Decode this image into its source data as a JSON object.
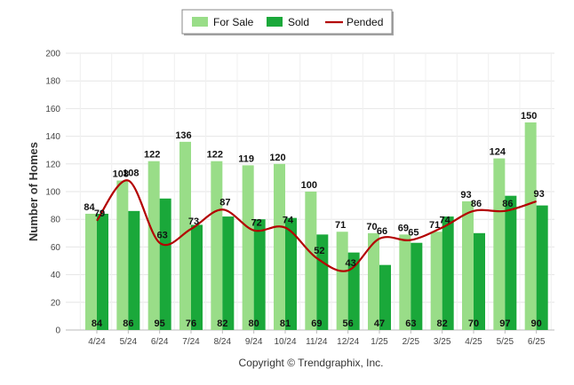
{
  "chart_data": {
    "type": "bar",
    "categories": [
      "4/24",
      "5/24",
      "6/24",
      "7/24",
      "8/24",
      "9/24",
      "10/24",
      "11/24",
      "12/24",
      "1/25",
      "2/25",
      "3/25",
      "4/25",
      "5/25",
      "6/25"
    ],
    "series": [
      {
        "name": "For Sale",
        "type": "bar",
        "color": "#99dd88",
        "values": [
          84,
          108,
          122,
          136,
          122,
          119,
          120,
          100,
          71,
          70,
          69,
          71,
          93,
          124,
          150
        ]
      },
      {
        "name": "Sold",
        "type": "bar",
        "color": "#1aa83a",
        "values": [
          84,
          86,
          95,
          76,
          82,
          80,
          81,
          69,
          56,
          47,
          63,
          82,
          70,
          97,
          90
        ]
      },
      {
        "name": "Pended",
        "type": "line",
        "color": "#b30000",
        "values": [
          79,
          108,
          63,
          73,
          87,
          72,
          74,
          52,
          43,
          66,
          65,
          74,
          86,
          86,
          93
        ]
      }
    ],
    "title": "",
    "xlabel": "",
    "ylabel": "Number of Homes",
    "ylim": [
      0,
      200
    ],
    "yticks": [
      0,
      20,
      40,
      60,
      80,
      100,
      120,
      140,
      160,
      180,
      200
    ],
    "grid": true,
    "legend_position": "top-center",
    "copyright": "Copyright © Trendgraphix, Inc."
  }
}
